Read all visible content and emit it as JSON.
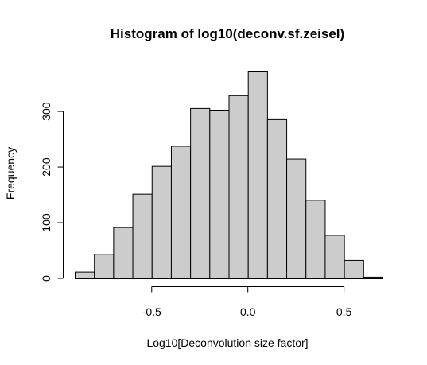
{
  "chart_data": {
    "type": "bar",
    "title": "Histogram of log10(deconv.sf.zeisel)",
    "xlabel": "Log10[Deconvolution size factor]",
    "ylabel": "Frequency",
    "bin_edges": [
      -0.9,
      -0.8,
      -0.7,
      -0.6,
      -0.5,
      -0.4,
      -0.3,
      -0.2,
      -0.1,
      0.0,
      0.1,
      0.2,
      0.3,
      0.4,
      0.5,
      0.6,
      0.7
    ],
    "values": [
      12,
      44,
      92,
      152,
      202,
      238,
      306,
      303,
      329,
      373,
      286,
      215,
      141,
      78,
      33,
      3
    ],
    "xticks": [
      -0.5,
      0.0,
      0.5
    ],
    "xtick_labels": [
      "-0.5",
      "0.0",
      "0.5"
    ],
    "yticks": [
      0,
      100,
      200,
      300
    ],
    "ytick_labels": [
      "0",
      "100",
      "200",
      "300"
    ],
    "xlim": [
      -0.9,
      0.7
    ],
    "ylim": [
      0,
      373
    ],
    "grid": false,
    "colors": {
      "bar_fill": "#cccccc",
      "bar_stroke": "#000000"
    }
  }
}
